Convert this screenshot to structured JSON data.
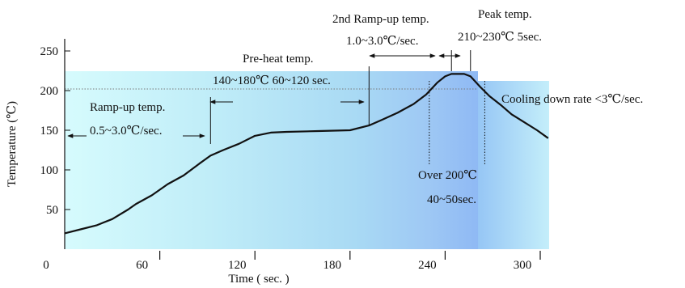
{
  "chart_data": {
    "type": "line",
    "xlabel": "Time ( sec. )",
    "ylabel": "Temperature (℃)",
    "x_ticks": [
      0,
      60,
      120,
      180,
      240,
      300
    ],
    "y_ticks": [
      50,
      100,
      150,
      200,
      250
    ],
    "xlim": [
      0,
      310
    ],
    "ylim": [
      0,
      270
    ],
    "grid": false,
    "series": [
      {
        "points": [
          [
            0,
            20
          ],
          [
            10,
            25
          ],
          [
            20,
            30
          ],
          [
            30,
            38
          ],
          [
            40,
            50
          ],
          [
            45,
            57
          ],
          [
            55,
            68
          ],
          [
            65,
            82
          ],
          [
            75,
            93
          ],
          [
            85,
            108
          ],
          [
            92,
            118
          ],
          [
            100,
            125
          ],
          [
            110,
            133
          ],
          [
            120,
            143
          ],
          [
            130,
            147
          ],
          [
            140,
            148
          ],
          [
            160,
            149
          ],
          [
            180,
            150
          ],
          [
            192,
            156
          ],
          [
            200,
            163
          ],
          [
            210,
            172
          ],
          [
            220,
            183
          ],
          [
            228,
            195
          ],
          [
            235,
            210
          ],
          [
            240,
            218
          ],
          [
            244,
            221
          ],
          [
            252,
            221
          ],
          [
            256,
            218
          ],
          [
            262,
            205
          ],
          [
            268,
            193
          ],
          [
            275,
            182
          ],
          [
            282,
            170
          ],
          [
            290,
            160
          ],
          [
            298,
            150
          ],
          [
            305,
            140
          ]
        ]
      }
    ],
    "regions": [
      {
        "x0": 0,
        "x1": 92,
        "y1": 220
      },
      {
        "x0": 92,
        "x1": 192,
        "y1": 220
      },
      {
        "x0": 192,
        "x1": 230,
        "y1": 220
      },
      {
        "x0": 230,
        "x1": 265,
        "y1": 220
      },
      {
        "x0": 265,
        "x1": 310,
        "y1": 210
      }
    ],
    "reference_lines": [
      {
        "axis": "y",
        "value": 200,
        "from_x": 0,
        "to_x": 265
      }
    ],
    "markers": [
      92,
      192,
      230,
      244,
      256,
      265
    ],
    "annotations": {
      "ramp_up_title": "Ramp-up temp.",
      "ramp_up_rate": "0.5~3.0℃/sec.",
      "preheat_title": "Pre-heat temp.",
      "preheat_range": "140~180℃ 60~120 sec.",
      "ramp2_title": "2nd Ramp-up temp.",
      "ramp2_rate": "1.0~3.0℃/sec.",
      "peak_title": "Peak temp.",
      "peak_range": "210~230℃ 5sec.",
      "cooling": "Cooling down rate <3℃/sec.",
      "over200_title": "Over 200℃",
      "over200_time": "40~50sec."
    },
    "colors": {
      "curve": "#111111",
      "region_light": "#ccf6fb",
      "region_mid": "#a7dcf4",
      "region_dark": "#8fb7f4",
      "guide": "#666666"
    }
  }
}
